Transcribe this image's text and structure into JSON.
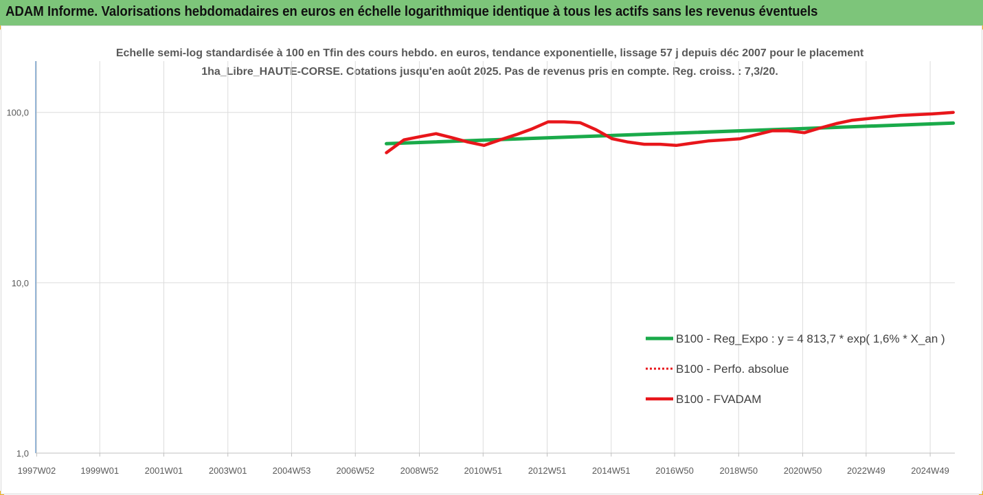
{
  "header": {
    "title": "ADAM Informe. Valorisations hebdomadaires en euros en échelle logarithmique identique à tous les actifs sans les revenus éventuels"
  },
  "colors": {
    "banner": "#7dc57a",
    "regression": "#1aaa4a",
    "fvadam": "#e8161b",
    "perfo": "#e8161b",
    "gridline": "#dcdcdc"
  },
  "chart_data": {
    "type": "line",
    "title": "Echelle semi-log standardisée à 100 en Tfin des cours hebdo. en euros, tendance exponentielle, lissage 57 j depuis déc 2007 pour le placement 1ha_Libre_HAUTE-CORSE. Cotations jusqu'en août 2025. Pas de revenus pris en compte. Reg. croiss. : 7,3/20.",
    "xlabel": "",
    "ylabel": "",
    "y_scale": "log",
    "ylim": [
      1,
      200
    ],
    "y_ticks": [
      1,
      10,
      100
    ],
    "y_tick_labels": [
      "1,0",
      "10,0",
      "100,0"
    ],
    "x_range": [
      1997.0,
      2025.7
    ],
    "x_tick_labels": [
      {
        "label": "1997W02",
        "x": 1997.03
      },
      {
        "label": "1999W01",
        "x": 1999.0
      },
      {
        "label": "2001W01",
        "x": 2001.0
      },
      {
        "label": "2003W01",
        "x": 2003.0
      },
      {
        "label": "2004W53",
        "x": 2004.99
      },
      {
        "label": "2006W52",
        "x": 2006.98
      },
      {
        "label": "2008W52",
        "x": 2008.98
      },
      {
        "label": "2010W51",
        "x": 2010.97
      },
      {
        "label": "2012W51",
        "x": 2012.97
      },
      {
        "label": "2014W51",
        "x": 2014.97
      },
      {
        "label": "2016W50",
        "x": 2016.95
      },
      {
        "label": "2018W50",
        "x": 2018.95
      },
      {
        "label": "2020W50",
        "x": 2020.95
      },
      {
        "label": "2022W49",
        "x": 2022.93
      },
      {
        "label": "2024W49",
        "x": 2024.93
      }
    ],
    "grid": true,
    "legend_position": "right",
    "series": [
      {
        "name": "B100 - Reg_Expo : y = 4 813,7 * exp( 1,6% *  X_an )",
        "style": "solid",
        "color": "#1aaa4a",
        "x": [
          2007.95,
          2025.65
        ],
        "y": [
          65.5,
          86.5
        ]
      },
      {
        "name": "B100 - Perfo. absolue",
        "style": "dotted",
        "color": "#e8161b",
        "x": [],
        "y": []
      },
      {
        "name": "B100 - FVADAM",
        "style": "solid",
        "color": "#e8161b",
        "x": [
          2007.95,
          2008.5,
          2009.0,
          2009.5,
          2010.0,
          2010.5,
          2011.0,
          2011.5,
          2012.0,
          2012.5,
          2013.0,
          2013.5,
          2014.0,
          2014.5,
          2015.0,
          2015.5,
          2016.0,
          2016.5,
          2017.0,
          2017.5,
          2018.0,
          2018.5,
          2019.0,
          2019.5,
          2020.0,
          2020.5,
          2021.0,
          2021.5,
          2022.0,
          2022.5,
          2023.0,
          2023.5,
          2024.0,
          2024.5,
          2025.0,
          2025.65
        ],
        "y": [
          58,
          69,
          72,
          75,
          71,
          67,
          64,
          69,
          74,
          80,
          88,
          88,
          87,
          79,
          70,
          67,
          65,
          65,
          64,
          66,
          68,
          69,
          70,
          74,
          78,
          78,
          76,
          81,
          86,
          90,
          92,
          94,
          96,
          97,
          98,
          100
        ]
      }
    ]
  }
}
